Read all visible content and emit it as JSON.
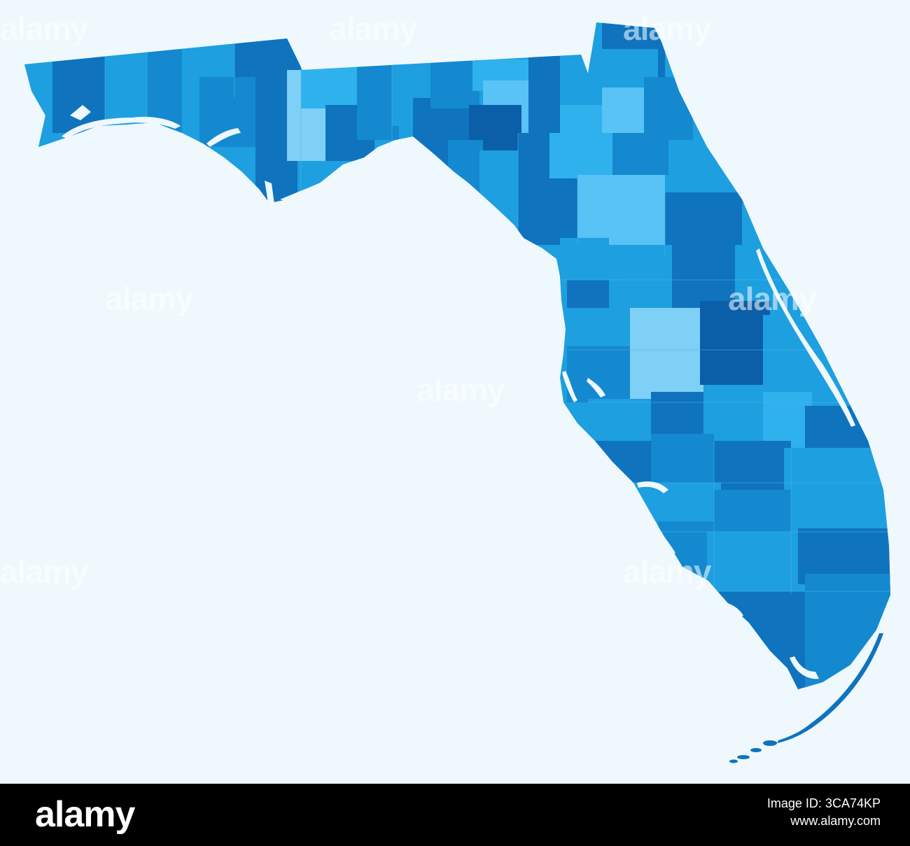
{
  "map": {
    "region": "Florida",
    "colors": {
      "background": "#eef8fd",
      "palette": [
        "#0b5ea8",
        "#0f73bd",
        "#1489cf",
        "#1d9fe0",
        "#2fb1ee",
        "#58c3f4",
        "#7fd0f6"
      ],
      "coast": "#ffffff"
    }
  },
  "watermark": {
    "text": "alamy"
  },
  "footer": {
    "logo": "alamy",
    "image_id": "Image ID: 3CA74KP",
    "url": "www.alamy.com",
    "background": "#000000"
  }
}
